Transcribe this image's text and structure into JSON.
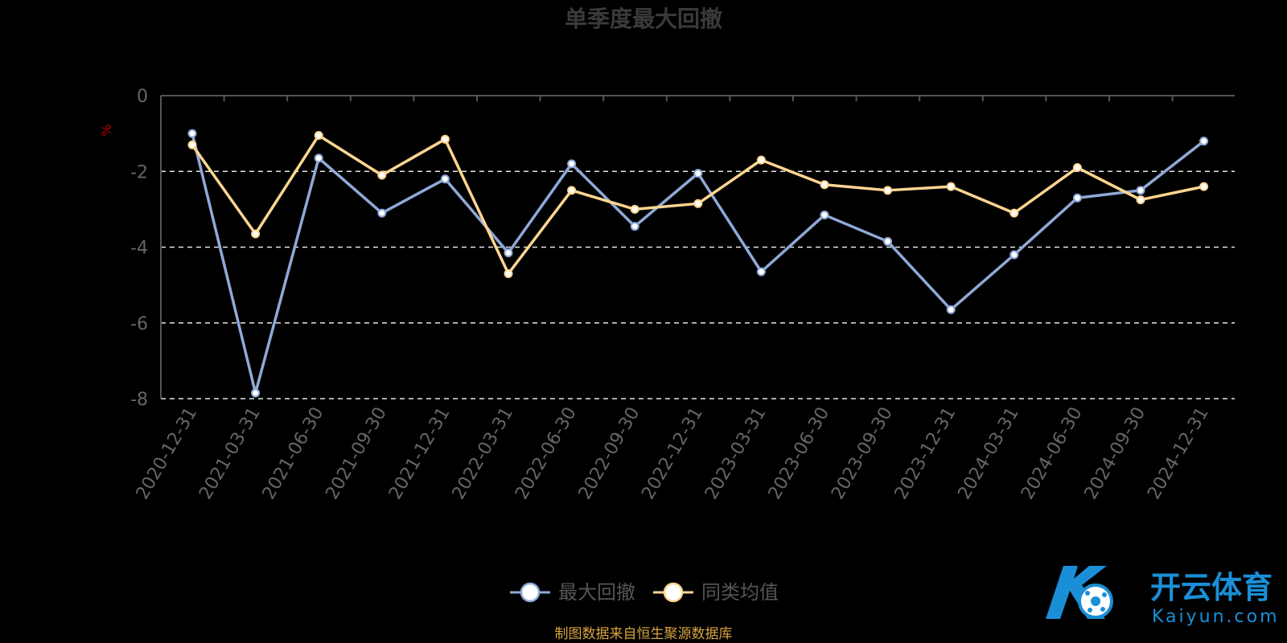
{
  "chart_data": {
    "type": "line",
    "title": "单季度最大回撤",
    "y_unit": "%",
    "ylim": [
      -8,
      0
    ],
    "y_ticks": [
      0,
      -2,
      -4,
      -6,
      -8
    ],
    "grid": "dashed horizontal at -2, -4, -6, -8",
    "legend_position": "bottom-center",
    "categories": [
      "2020-12-31",
      "2021-03-31",
      "2021-06-30",
      "2021-09-30",
      "2021-12-31",
      "2022-03-31",
      "2022-06-30",
      "2022-09-30",
      "2022-12-31",
      "2023-03-31",
      "2023-06-30",
      "2023-09-30",
      "2023-12-31",
      "2024-03-31",
      "2024-06-30",
      "2024-09-30",
      "2024-12-31"
    ],
    "series": [
      {
        "name": "最大回撤",
        "color": "#8fa9d8",
        "values": [
          -1.0,
          -7.85,
          -1.65,
          -3.1,
          -2.2,
          -4.15,
          -1.8,
          -3.45,
          -2.05,
          -4.65,
          -3.15,
          -3.85,
          -5.65,
          -4.2,
          -2.7,
          -2.5,
          -1.2
        ]
      },
      {
        "name": "同类均值",
        "color": "#ffd591",
        "values": [
          -1.3,
          -3.65,
          -1.05,
          -2.1,
          -1.15,
          -4.7,
          -2.5,
          -3.0,
          -2.85,
          -1.7,
          -2.35,
          -2.5,
          -2.4,
          -3.1,
          -1.9,
          -2.75,
          -2.4
        ]
      }
    ]
  },
  "footer": {
    "source_text": "制图数据来自恒生聚源数据库"
  },
  "watermark": {
    "brand_cn": "开云体育",
    "brand_en": "Kaiyun.com"
  }
}
